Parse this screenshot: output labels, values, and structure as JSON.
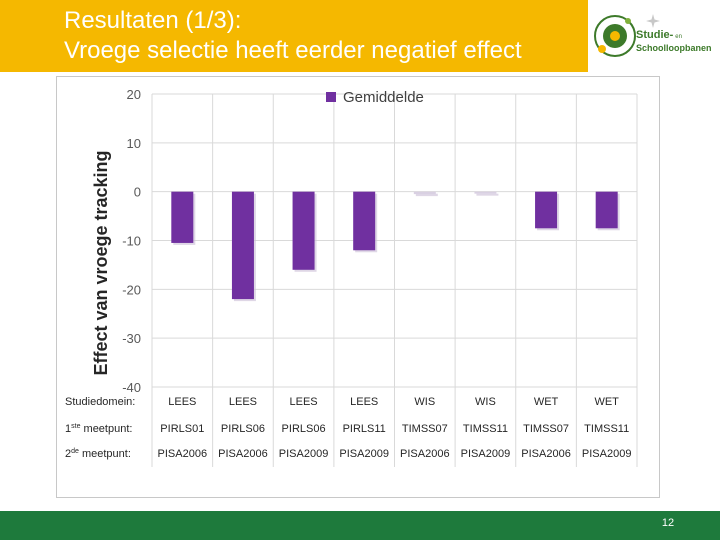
{
  "slide": {
    "title_line1": "Resultaten (1/3):",
    "title_line2": "Vroege selectie heeft eerder negatief effect",
    "page_number": "12",
    "logo": {
      "line1": "Studie-",
      "line1_small": "en",
      "line2": "Schoolloopbanen"
    }
  },
  "colors": {
    "header": "#f5b800",
    "footer": "#1e7a3c",
    "bar": "#7030a0",
    "logo": "#3d7a2a"
  },
  "chart_data": {
    "type": "bar",
    "legend": "Gemiddelde",
    "ylabel": "Effect van vroege tracking",
    "ylim": [
      -40,
      20
    ],
    "yticks": [
      20,
      10,
      0,
      -10,
      -20,
      -30,
      -40
    ],
    "categories": [
      "LEES",
      "LEES",
      "LEES",
      "LEES",
      "WIS",
      "WIS",
      "WET",
      "WET"
    ],
    "values": [
      -10.5,
      -22,
      -16,
      -12,
      -0.5,
      -0.4,
      -7.5,
      -7.5
    ],
    "group_rows": [
      {
        "label": "Studiedomein:",
        "cells": [
          "LEES",
          "LEES",
          "LEES",
          "LEES",
          "WIS",
          "WIS",
          "WET",
          "WET"
        ]
      },
      {
        "label_main": "1",
        "label_sup": "ste",
        "label_rest": " meetpunt:",
        "cells": [
          "PIRLS01",
          "PIRLS06",
          "PIRLS06",
          "PIRLS11",
          "TIMSS07",
          "TIMSS11",
          "TIMSS07",
          "TIMSS11"
        ]
      },
      {
        "label_main": "2",
        "label_sup": "de",
        "label_rest": " meetpunt:",
        "cells": [
          "PISA2006",
          "PISA2006",
          "PISA2009",
          "PISA2009",
          "PISA2006",
          "PISA2009",
          "PISA2006",
          "PISA2009"
        ]
      }
    ]
  }
}
